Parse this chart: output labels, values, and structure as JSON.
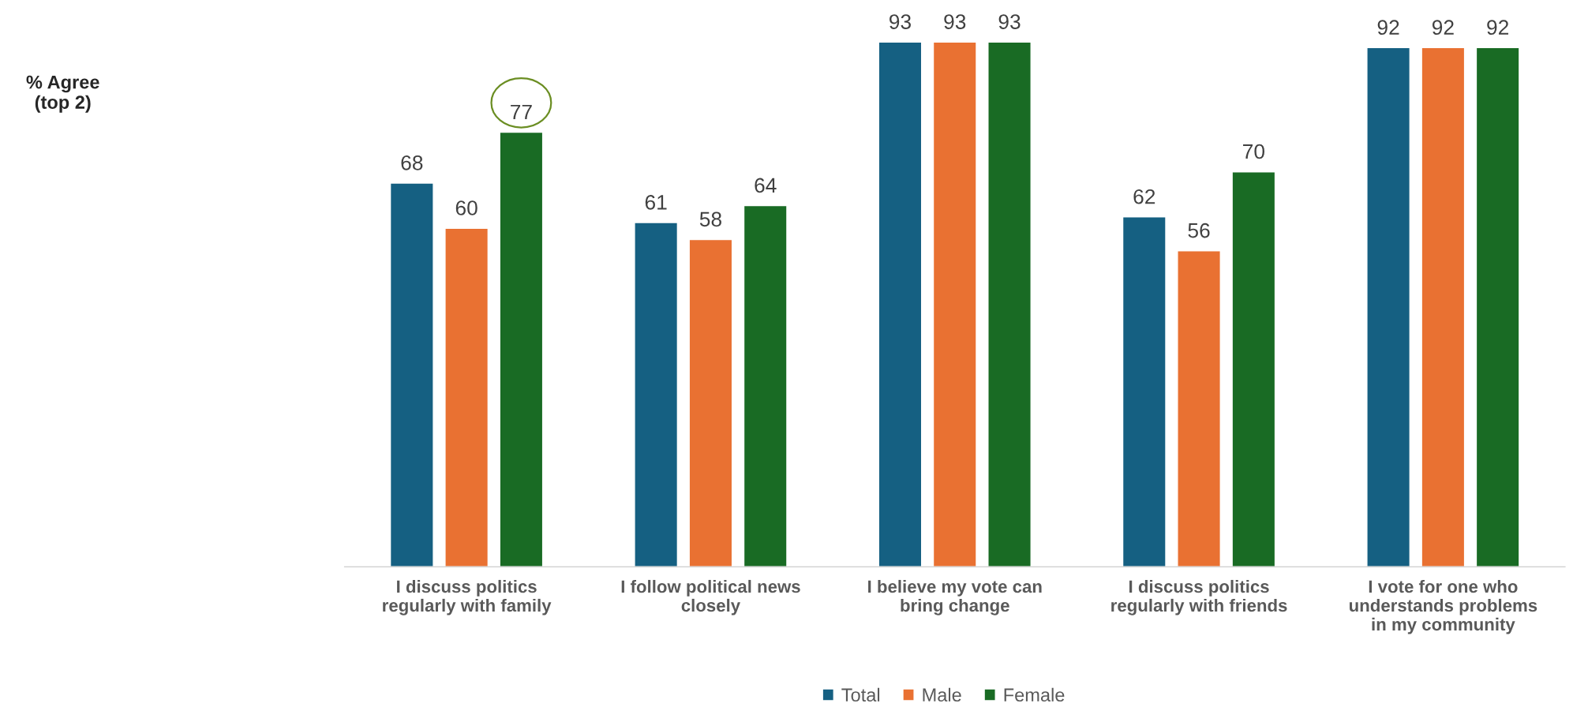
{
  "chart_data": {
    "type": "bar",
    "annotations": [
      "% Agree\n(top 2)"
    ],
    "categories": [
      "I discuss politics\nregularly with family",
      "I follow political news\nclosely",
      "I believe my vote can\nbring change",
      "I discuss politics\nregularly with friends",
      "I vote for one who\nunderstands problems\nin my community"
    ],
    "series": [
      {
        "name": "Total",
        "color": "#156082",
        "values": [
          68,
          61,
          93,
          62,
          92
        ]
      },
      {
        "name": "Male",
        "color": "#e97132",
        "values": [
          60,
          58,
          93,
          56,
          92
        ]
      },
      {
        "name": "Female",
        "color": "#196b24",
        "values": [
          77,
          64,
          93,
          70,
          92
        ]
      }
    ],
    "data_labels": true,
    "legend": "bottom",
    "grid": false
  }
}
